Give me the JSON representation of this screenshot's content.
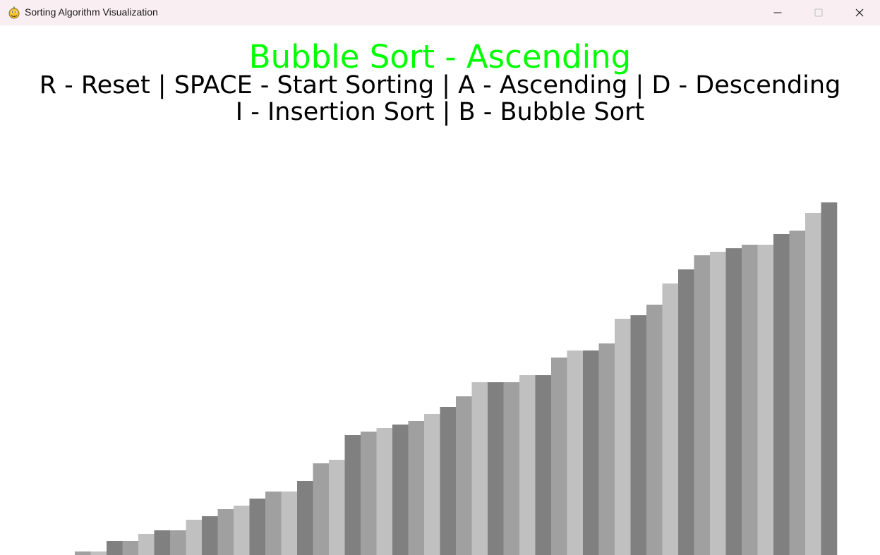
{
  "window": {
    "title": "Sorting Algorithm Visualization",
    "icon": "pygame-snake-icon",
    "controls": [
      "minimize-icon",
      "maximize-icon",
      "close-icon"
    ]
  },
  "screen": {
    "title": "Bubble Sort - Ascending",
    "title_color": "#00ff00",
    "instructions_line1": "R - Reset | SPACE - Start Sorting | A - Ascending | D - Descending",
    "instructions_line2": "I - Insertion Sort | B - Bubble Sort"
  },
  "chart_data": {
    "type": "bar",
    "title": "",
    "xlabel": "",
    "ylabel": "",
    "bar_colors": [
      "#808080",
      "#a0a0a0",
      "#c0c0c0"
    ],
    "ylim": [
      0,
      100
    ],
    "values": [
      0,
      0,
      0,
      0,
      1,
      1,
      4,
      4,
      6,
      7,
      7,
      10,
      11,
      13,
      14,
      16,
      18,
      18,
      21,
      26,
      27,
      34,
      35,
      36,
      37,
      38,
      40,
      42,
      45,
      49,
      49,
      49,
      51,
      51,
      56,
      58,
      58,
      60,
      67,
      68,
      71,
      77,
      81,
      85,
      86,
      87,
      88,
      88,
      91,
      92,
      97,
      100
    ]
  }
}
